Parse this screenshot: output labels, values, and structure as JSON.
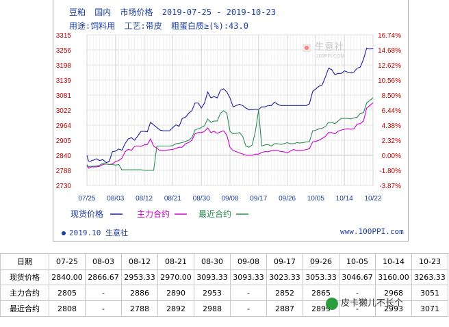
{
  "header": {
    "product": "豆粕",
    "region": "国内",
    "kind": "市场价格",
    "date_range": "2019-07-25 - 2019-10-23",
    "usage_label": "用途:饲料用",
    "process_label": "工艺:带皮",
    "protein_label": "粗蛋白质≥(%):43.0"
  },
  "logo_text": "生意社",
  "logo_sub": "100PPI.COM",
  "chart_data": {
    "type": "line",
    "title": "",
    "x_ticks": [
      "07/25",
      "08/03",
      "08/12",
      "08/21",
      "08/30",
      "09/08",
      "09/17",
      "09/26",
      "10/05",
      "10/14",
      "10/22"
    ],
    "left_ticks": [
      "3315",
      "3256",
      "3198",
      "3139",
      "3081",
      "3022",
      "2964",
      "2905",
      "2840",
      "2788",
      "2730"
    ],
    "right_ticks": [
      "16.74%",
      "14.68%",
      "12.62%",
      "10.56%",
      "8.50%",
      "6.44%",
      "4.38%",
      "2.32%",
      "0.00%",
      "-1.80%",
      "-3.87%"
    ],
    "ylim": [
      2730,
      3315
    ],
    "y2lim": [
      -3.87,
      16.74
    ],
    "series": [
      {
        "name": "现货价格",
        "color": "#1c1c9c",
        "x": [
          0,
          0.5,
          1,
          1.5,
          2,
          3,
          4,
          5,
          6,
          7,
          8,
          9,
          10,
          11,
          12,
          13,
          14,
          15,
          16,
          17,
          18,
          19,
          20,
          21,
          22,
          23,
          24,
          25,
          26,
          27,
          28,
          29,
          30,
          31,
          32,
          33,
          34,
          35,
          36,
          37,
          38,
          39,
          40,
          41,
          42,
          43,
          44,
          45,
          46,
          47,
          48,
          49,
          50,
          51,
          52,
          53,
          54,
          55,
          56,
          57,
          58,
          59,
          60,
          61,
          62,
          63,
          64,
          65,
          66,
          67,
          68,
          69,
          70,
          71,
          72,
          73,
          74,
          75,
          76,
          77,
          78,
          79,
          80,
          81,
          82,
          83,
          84,
          85,
          86,
          87,
          88,
          89,
          90
        ],
        "values": [
          2840,
          2820,
          2818,
          2822,
          2823,
          2828,
          2822,
          2825,
          2815,
          2818,
          2855,
          2858,
          2867,
          2862,
          2890,
          2910,
          2915,
          2905,
          2922,
          2940,
          2940,
          2938,
          2975,
          2965,
          2955,
          2945,
          2942,
          2942,
          2942,
          2955,
          2965,
          2960,
          2990,
          2995,
          3010,
          3020,
          3050,
          3050,
          3030,
          3050,
          3093,
          3070,
          3075,
          3070,
          3100,
          3105,
          3093,
          3070,
          3035,
          3040,
          3045,
          3040,
          3030,
          3024,
          3024,
          3026,
          3025,
          3035,
          3035,
          3040,
          3040,
          3053,
          3045,
          3040,
          3040,
          3040,
          3040,
          3040,
          3040,
          3040,
          3040,
          3040,
          3047,
          3095,
          3105,
          3115,
          3120,
          3150,
          3185,
          3180,
          3160,
          3165,
          3165,
          3175,
          3170,
          3168,
          3170,
          3185,
          3190,
          3220,
          3263,
          3260,
          3263
        ]
      },
      {
        "name": "主力合约",
        "color": "#cc00cc",
        "x": [
          0,
          0.5,
          1,
          1.5,
          2,
          3,
          4,
          5,
          6,
          7,
          8,
          9,
          10,
          11,
          12,
          13,
          14,
          15,
          16,
          17,
          18,
          19,
          20,
          21,
          22,
          23,
          24,
          25,
          26,
          27,
          28,
          29,
          30,
          31,
          32,
          33,
          34,
          35,
          36,
          37,
          38,
          39,
          40,
          41,
          42,
          43,
          44,
          45,
          46,
          47,
          48,
          49,
          50,
          51,
          52,
          53,
          54,
          55,
          56,
          57,
          58,
          59,
          60,
          61,
          62,
          63,
          64,
          65,
          66,
          67,
          68,
          69,
          70,
          71,
          72,
          73,
          74,
          75,
          76,
          77,
          78,
          79,
          80,
          81,
          82,
          83,
          84,
          85,
          86,
          87,
          88,
          89,
          90
        ],
        "values": [
          2805,
          2795,
          2798,
          2800,
          2800,
          2800,
          2802,
          2808,
          2810,
          2808,
          2810,
          2818,
          2822,
          2830,
          2855,
          2866,
          2862,
          2878,
          2880,
          2878,
          2885,
          2886,
          2910,
          2880,
          2870,
          2860,
          2862,
          2862,
          2864,
          2865,
          2870,
          2875,
          2875,
          2890,
          2895,
          2905,
          2930,
          2935,
          2935,
          2940,
          2953,
          2935,
          2940,
          2932,
          2938,
          2942,
          2925,
          2875,
          2860,
          2856,
          2850,
          2846,
          2840,
          2840,
          2840,
          2845,
          2845,
          2852,
          2856,
          2855,
          2860,
          2862,
          2860,
          2856,
          2855,
          2850,
          2858,
          2865,
          2860,
          2860,
          2862,
          2865,
          2868,
          2898,
          2900,
          2905,
          2912,
          2920,
          2935,
          2935,
          2930,
          2940,
          2945,
          2948,
          2950,
          2948,
          2950,
          2968,
          2970,
          2980,
          3030,
          3040,
          3051
        ]
      },
      {
        "name": "最近合约",
        "color": "#2e8b57",
        "x": [
          0,
          0.5,
          1,
          1.5,
          2,
          3,
          4,
          5,
          6,
          7,
          8,
          9,
          10,
          11,
          12,
          13,
          14,
          15,
          16,
          17,
          18,
          19,
          20,
          21,
          22,
          23,
          24,
          25,
          26,
          27,
          28,
          29,
          30,
          31,
          32,
          33,
          34,
          35,
          36,
          37,
          38,
          39,
          40,
          41,
          42,
          43,
          44,
          45,
          46,
          47,
          48,
          49,
          50,
          51,
          52,
          53,
          54,
          55,
          56,
          57,
          58,
          59,
          60,
          61,
          62,
          63,
          64,
          65,
          66,
          67,
          68,
          69,
          70,
          71,
          72,
          73,
          74,
          75,
          76,
          77,
          78,
          79,
          80,
          81,
          82,
          83,
          84,
          85,
          86,
          87,
          88,
          89,
          90
        ],
        "values": [
          2808,
          2800,
          2802,
          2802,
          2802,
          2803,
          2806,
          2812,
          2810,
          2808,
          2808,
          2806,
          2808,
          2790,
          2790,
          2790,
          2790,
          2790,
          2790,
          2790,
          2788,
          2788,
          2788,
          2788,
          2880,
          2880,
          2880,
          2880,
          2880,
          2882,
          2890,
          2892,
          2895,
          2900,
          2905,
          2915,
          2945,
          2950,
          2955,
          2962,
          2988,
          2975,
          2980,
          2980,
          3010,
          3020,
          3010,
          2940,
          2930,
          2932,
          2935,
          2920,
          2880,
          2875,
          2885,
          2940,
          3022,
          2880,
          2885,
          2886,
          2880,
          2890,
          2890,
          2887,
          2890,
          2895,
          2890,
          2890,
          2895,
          2893,
          2895,
          2898,
          2899,
          2942,
          2944,
          2950,
          2952,
          2958,
          2975,
          2975,
          2970,
          2980,
          2990,
          2990,
          2990,
          2988,
          2992,
          2995,
          3010,
          3012,
          3050,
          3060,
          3071
        ]
      }
    ]
  },
  "legend": [
    "现货价格",
    "主力合约",
    "最近合约"
  ],
  "footer": {
    "left": "2019.10 生意社",
    "right": "www.100PPI.com"
  },
  "table": {
    "header": [
      "日期",
      "07-25",
      "08-03",
      "08-12",
      "08-21",
      "08-30",
      "09-08",
      "09-17",
      "09-26",
      "10-05",
      "10-14",
      "10-23"
    ],
    "rows": [
      [
        "现货价格",
        "2840.00",
        "2866.67",
        "2953.33",
        "2970.00",
        "3093.33",
        "3093.33",
        "3023.33",
        "3053.33",
        "3046.67",
        "3160.00",
        "3263.33"
      ],
      [
        "主力合约",
        "2805",
        "-",
        "2886",
        "2890",
        "2953",
        "-",
        "2852",
        "2865",
        "-",
        "2968",
        "3051"
      ],
      [
        "最近合约",
        "2808",
        "-",
        "2788",
        "2892",
        "2988",
        "-",
        "2887",
        "2899",
        "-",
        "2993",
        "3071"
      ]
    ]
  },
  "watermark": "皮卡獭儿不长个"
}
